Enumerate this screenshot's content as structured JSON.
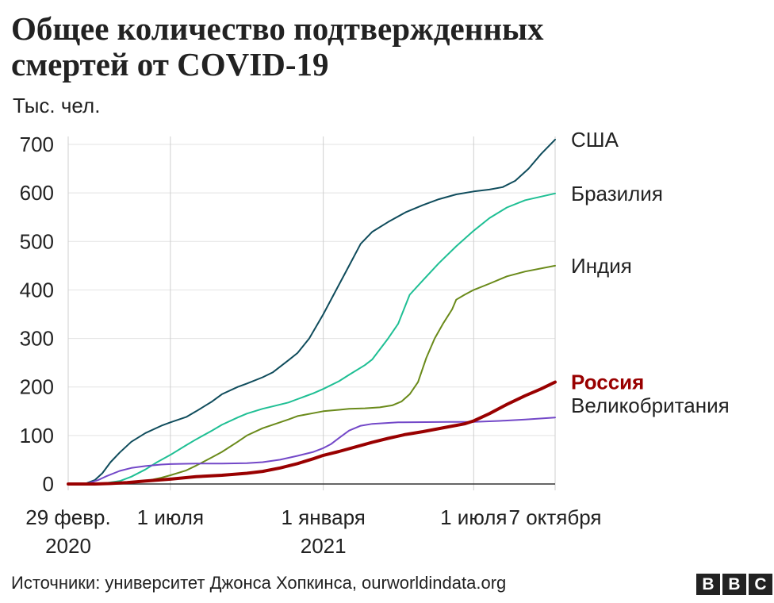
{
  "title_lines": [
    "Общее количество подтвержденных",
    "смертей от COVID-19"
  ],
  "unit_label": "Тыс. чел.",
  "source": "Источники: университет Джонса Хопкинса, ourworldindata.org",
  "logo_letters": [
    "B",
    "B",
    "C"
  ],
  "chart_data": {
    "type": "line",
    "title": "Общее количество подтвержденных смертей от COVID-19",
    "ylabel": "Тыс. чел.",
    "ylim": [
      0,
      700
    ],
    "yticks": [
      0,
      100,
      200,
      300,
      400,
      500,
      600,
      700
    ],
    "xlim": [
      "2020-02-29",
      "2021-10-07"
    ],
    "xticks": [
      {
        "date": "2020-02-29",
        "label": [
          "29 февр.",
          "2020"
        ]
      },
      {
        "date": "2020-07-01",
        "label": [
          "1 июля"
        ]
      },
      {
        "date": "2021-01-01",
        "label": [
          "1 января",
          "2021"
        ]
      },
      {
        "date": "2021-07-01",
        "label": [
          "1 июля"
        ]
      },
      {
        "date": "2021-10-07",
        "label": [
          "7 октября"
        ]
      }
    ],
    "grid": true,
    "legend": "end-of-line labels",
    "series": [
      {
        "name": "США",
        "color": "#0f4c5c",
        "highlight": false,
        "points": [
          [
            "2020-02-29",
            0
          ],
          [
            "2020-03-12",
            0
          ],
          [
            "2020-03-20",
            0.3
          ],
          [
            "2020-04-01",
            8
          ],
          [
            "2020-04-10",
            22
          ],
          [
            "2020-04-20",
            45
          ],
          [
            "2020-05-01",
            65
          ],
          [
            "2020-05-15",
            87
          ],
          [
            "2020-06-01",
            105
          ],
          [
            "2020-06-20",
            120
          ],
          [
            "2020-07-01",
            127
          ],
          [
            "2020-07-20",
            138
          ],
          [
            "2020-08-01",
            150
          ],
          [
            "2020-08-20",
            170
          ],
          [
            "2020-09-01",
            185
          ],
          [
            "2020-09-20",
            200
          ],
          [
            "2020-10-01",
            207
          ],
          [
            "2020-10-20",
            220
          ],
          [
            "2020-11-01",
            230
          ],
          [
            "2020-11-20",
            255
          ],
          [
            "2020-12-01",
            270
          ],
          [
            "2020-12-15",
            300
          ],
          [
            "2021-01-01",
            350
          ],
          [
            "2021-01-15",
            395
          ],
          [
            "2021-02-01",
            450
          ],
          [
            "2021-02-15",
            495
          ],
          [
            "2021-03-01",
            520
          ],
          [
            "2021-03-20",
            540
          ],
          [
            "2021-04-10",
            560
          ],
          [
            "2021-05-01",
            575
          ],
          [
            "2021-05-20",
            587
          ],
          [
            "2021-06-10",
            597
          ],
          [
            "2021-07-01",
            603
          ],
          [
            "2021-07-20",
            607
          ],
          [
            "2021-08-05",
            612
          ],
          [
            "2021-08-20",
            625
          ],
          [
            "2021-09-05",
            650
          ],
          [
            "2021-09-20",
            680
          ],
          [
            "2021-10-07",
            710
          ]
        ]
      },
      {
        "name": "Бразилия",
        "color": "#1fbf94",
        "highlight": false,
        "points": [
          [
            "2020-02-29",
            0
          ],
          [
            "2020-03-31",
            0
          ],
          [
            "2020-04-15",
            2
          ],
          [
            "2020-05-01",
            6
          ],
          [
            "2020-05-15",
            15
          ],
          [
            "2020-06-01",
            30
          ],
          [
            "2020-06-15",
            45
          ],
          [
            "2020-07-01",
            60
          ],
          [
            "2020-07-20",
            80
          ],
          [
            "2020-08-01",
            92
          ],
          [
            "2020-08-20",
            110
          ],
          [
            "2020-09-01",
            122
          ],
          [
            "2020-09-20",
            137
          ],
          [
            "2020-10-01",
            145
          ],
          [
            "2020-10-20",
            155
          ],
          [
            "2020-11-01",
            160
          ],
          [
            "2020-11-20",
            168
          ],
          [
            "2020-12-01",
            175
          ],
          [
            "2020-12-20",
            187
          ],
          [
            "2021-01-01",
            196
          ],
          [
            "2021-01-20",
            212
          ],
          [
            "2021-02-01",
            225
          ],
          [
            "2021-02-20",
            245
          ],
          [
            "2021-03-01",
            257
          ],
          [
            "2021-03-20",
            300
          ],
          [
            "2021-04-01",
            330
          ],
          [
            "2021-04-15",
            390
          ],
          [
            "2021-05-01",
            420
          ],
          [
            "2021-05-20",
            455
          ],
          [
            "2021-06-10",
            490
          ],
          [
            "2021-07-01",
            522
          ],
          [
            "2021-07-20",
            548
          ],
          [
            "2021-08-10",
            570
          ],
          [
            "2021-09-01",
            585
          ],
          [
            "2021-10-07",
            599
          ]
        ]
      },
      {
        "name": "Индия",
        "color": "#6a8a1a",
        "highlight": false,
        "points": [
          [
            "2020-02-29",
            0
          ],
          [
            "2020-04-15",
            0.4
          ],
          [
            "2020-05-01",
            1.5
          ],
          [
            "2020-05-20",
            4
          ],
          [
            "2020-06-01",
            6
          ],
          [
            "2020-06-20",
            13
          ],
          [
            "2020-07-01",
            18
          ],
          [
            "2020-07-20",
            28
          ],
          [
            "2020-08-01",
            38
          ],
          [
            "2020-08-20",
            55
          ],
          [
            "2020-09-01",
            66
          ],
          [
            "2020-09-20",
            87
          ],
          [
            "2020-10-01",
            100
          ],
          [
            "2020-10-20",
            115
          ],
          [
            "2020-11-01",
            122
          ],
          [
            "2020-11-20",
            133
          ],
          [
            "2020-12-01",
            140
          ],
          [
            "2020-12-20",
            146
          ],
          [
            "2021-01-01",
            150
          ],
          [
            "2021-01-20",
            153
          ],
          [
            "2021-02-01",
            155
          ],
          [
            "2021-02-20",
            156
          ],
          [
            "2021-03-10",
            158
          ],
          [
            "2021-03-25",
            162
          ],
          [
            "2021-04-05",
            170
          ],
          [
            "2021-04-15",
            185
          ],
          [
            "2021-04-25",
            210
          ],
          [
            "2021-05-05",
            260
          ],
          [
            "2021-05-15",
            300
          ],
          [
            "2021-05-25",
            330
          ],
          [
            "2021-06-05",
            360
          ],
          [
            "2021-06-10",
            380
          ],
          [
            "2021-06-20",
            390
          ],
          [
            "2021-07-01",
            400
          ],
          [
            "2021-07-20",
            413
          ],
          [
            "2021-08-10",
            428
          ],
          [
            "2021-09-01",
            438
          ],
          [
            "2021-10-07",
            450
          ]
        ]
      },
      {
        "name": "Россия",
        "color": "#990000",
        "highlight": true,
        "points": [
          [
            "2020-02-29",
            0
          ],
          [
            "2020-04-01",
            0
          ],
          [
            "2020-04-20",
            1
          ],
          [
            "2020-05-10",
            3
          ],
          [
            "2020-06-01",
            6
          ],
          [
            "2020-07-01",
            10
          ],
          [
            "2020-08-01",
            15
          ],
          [
            "2020-09-01",
            18
          ],
          [
            "2020-10-01",
            22
          ],
          [
            "2020-10-20",
            26
          ],
          [
            "2020-11-10",
            33
          ],
          [
            "2020-12-01",
            42
          ],
          [
            "2020-12-20",
            52
          ],
          [
            "2021-01-01",
            59
          ],
          [
            "2021-01-20",
            67
          ],
          [
            "2021-02-10",
            77
          ],
          [
            "2021-03-01",
            86
          ],
          [
            "2021-03-20",
            94
          ],
          [
            "2021-04-10",
            102
          ],
          [
            "2021-05-01",
            108
          ],
          [
            "2021-06-01",
            118
          ],
          [
            "2021-06-20",
            124
          ],
          [
            "2021-07-01",
            130
          ],
          [
            "2021-07-20",
            145
          ],
          [
            "2021-08-10",
            164
          ],
          [
            "2021-09-01",
            182
          ],
          [
            "2021-09-20",
            196
          ],
          [
            "2021-10-07",
            210
          ]
        ]
      },
      {
        "name": "Великобритания",
        "color": "#7348c8",
        "highlight": false,
        "points": [
          [
            "2020-02-29",
            0
          ],
          [
            "2020-03-15",
            0
          ],
          [
            "2020-03-25",
            2
          ],
          [
            "2020-04-05",
            8
          ],
          [
            "2020-04-15",
            16
          ],
          [
            "2020-05-01",
            27
          ],
          [
            "2020-05-15",
            33
          ],
          [
            "2020-06-01",
            37
          ],
          [
            "2020-06-20",
            40
          ],
          [
            "2020-07-01",
            41
          ],
          [
            "2020-08-01",
            42
          ],
          [
            "2020-09-01",
            42
          ],
          [
            "2020-10-01",
            43
          ],
          [
            "2020-10-20",
            45
          ],
          [
            "2020-11-10",
            50
          ],
          [
            "2020-12-01",
            58
          ],
          [
            "2020-12-20",
            66
          ],
          [
            "2021-01-01",
            74
          ],
          [
            "2021-01-10",
            82
          ],
          [
            "2021-01-20",
            95
          ],
          [
            "2021-02-01",
            110
          ],
          [
            "2021-02-15",
            120
          ],
          [
            "2021-03-01",
            124
          ],
          [
            "2021-04-01",
            127
          ],
          [
            "2021-06-01",
            128
          ],
          [
            "2021-07-01",
            128
          ],
          [
            "2021-08-01",
            130
          ],
          [
            "2021-09-01",
            133
          ],
          [
            "2021-10-07",
            137
          ]
        ]
      }
    ]
  }
}
